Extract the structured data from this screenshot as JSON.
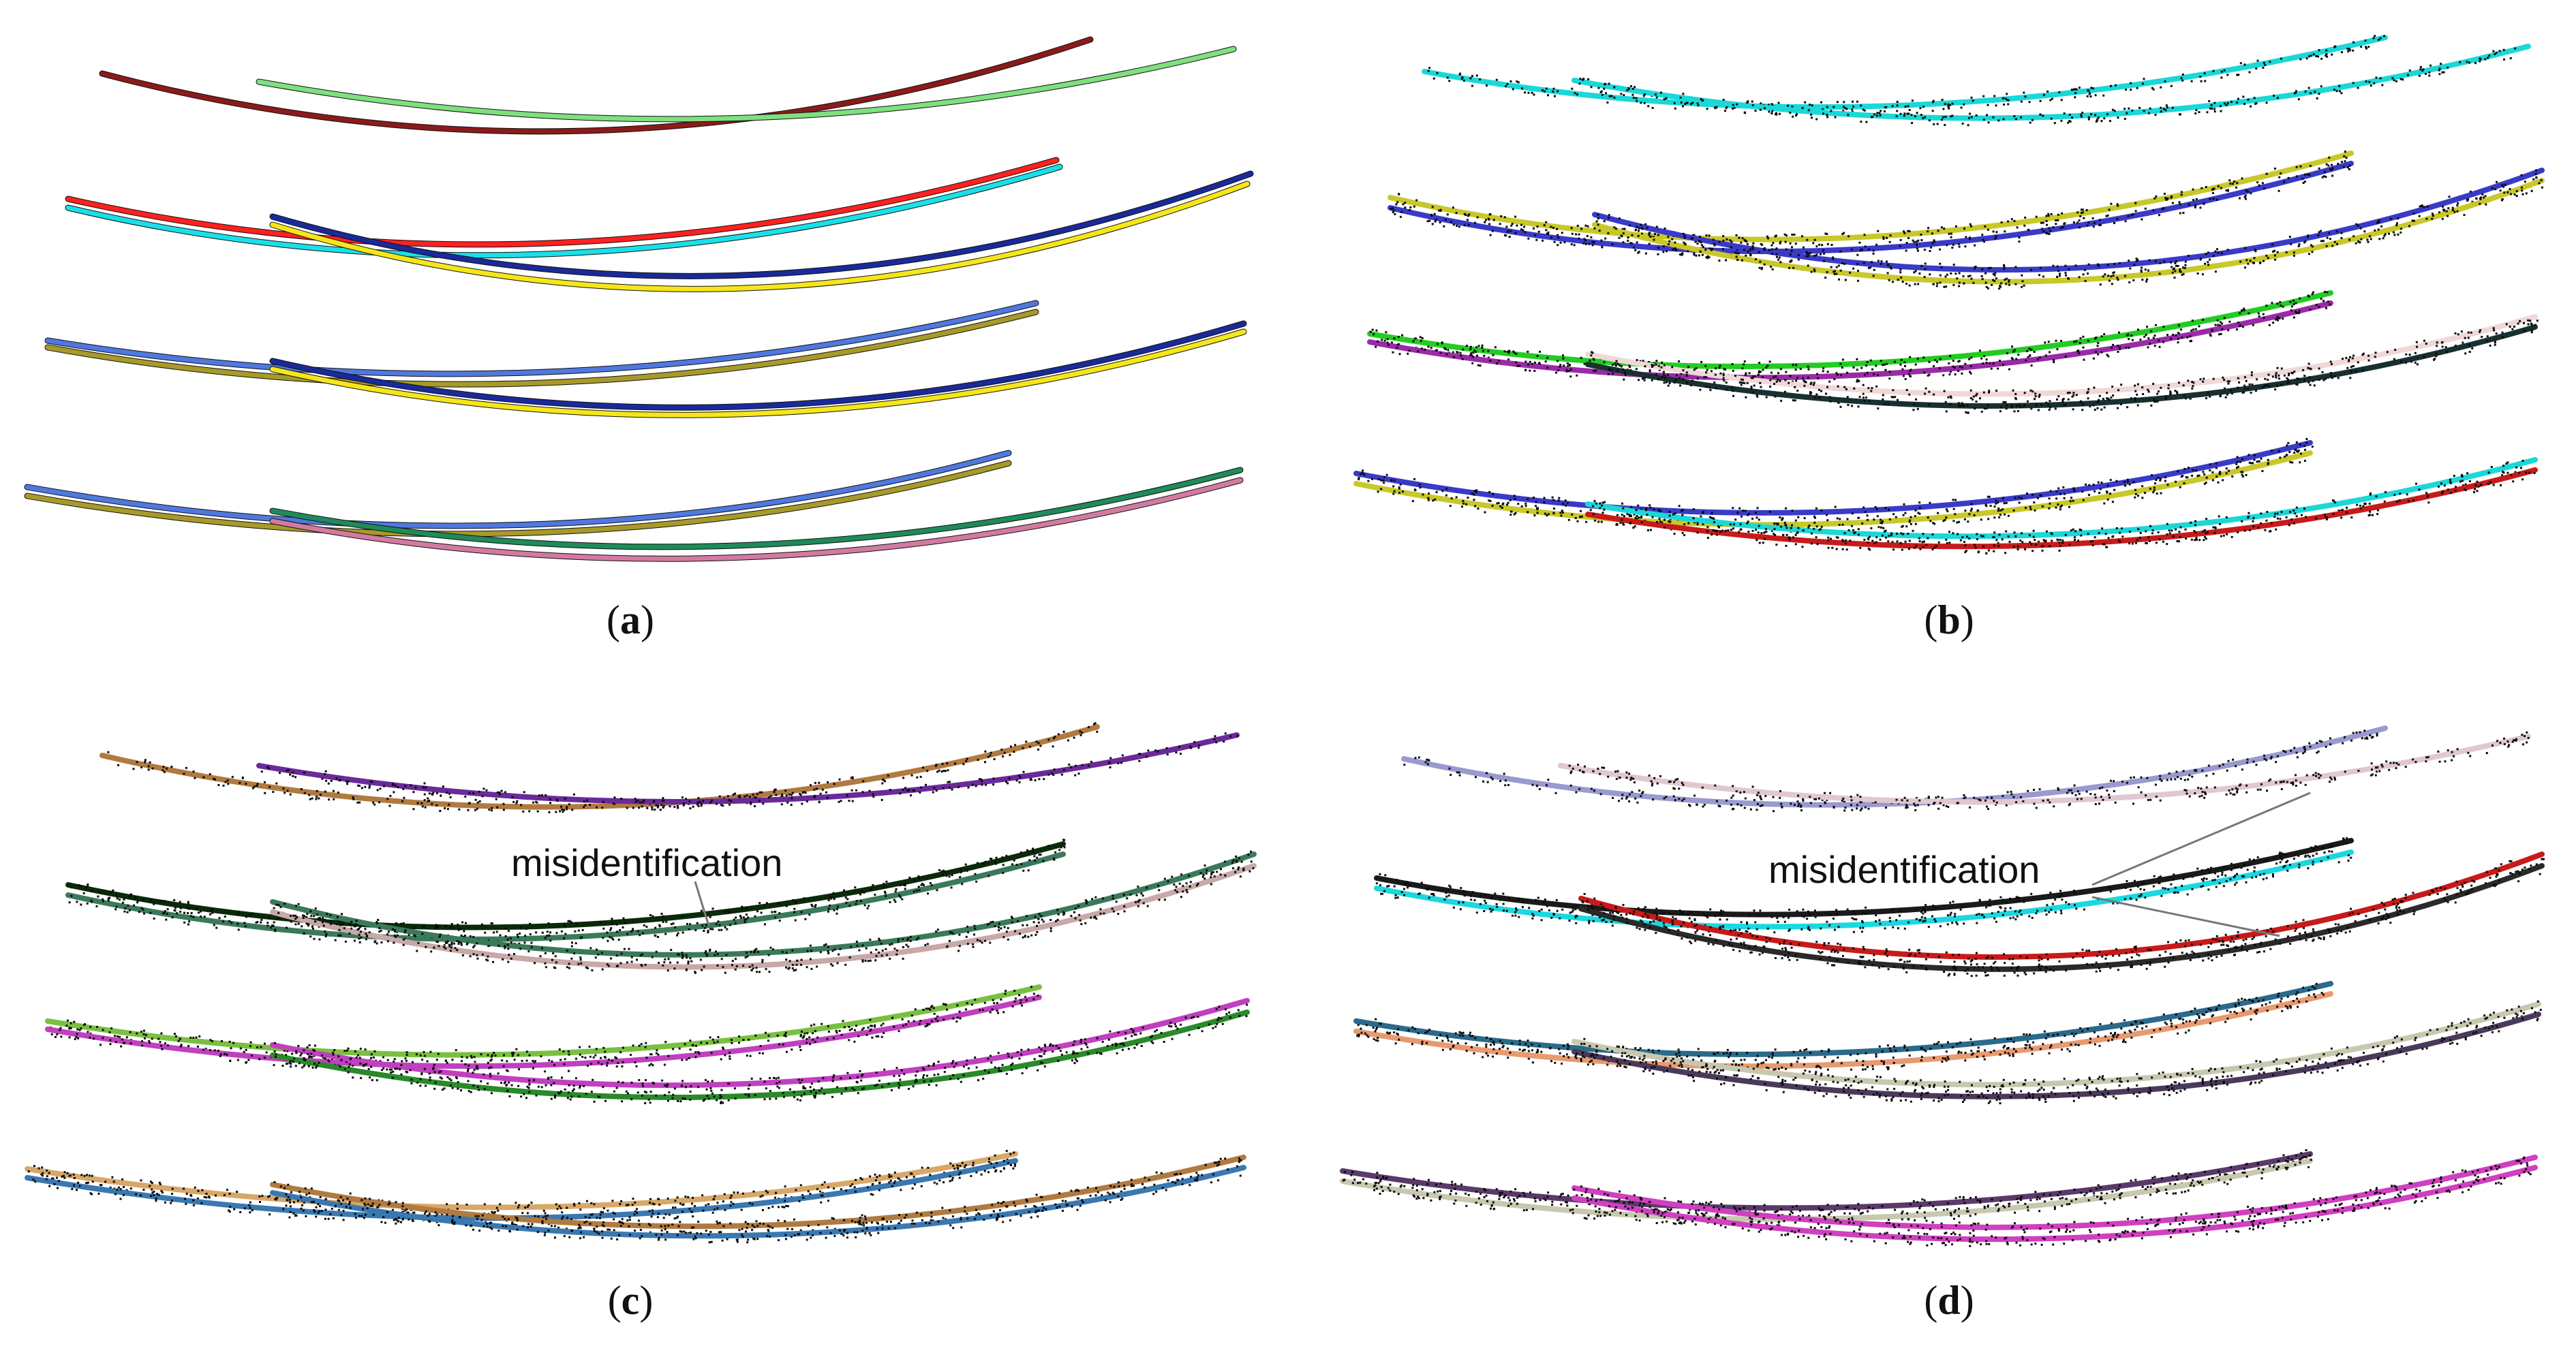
{
  "figure": {
    "panels": [
      {
        "id": "a",
        "label": "a",
        "annotation": "",
        "style": "solid",
        "colors": [
          "#8b1a1a",
          "#7ee07e",
          "#ff2020",
          "#19e0e8",
          "#1a2a9a",
          "#f5e61a",
          "#4f78e0",
          "#a89a2a",
          "#1a2a9a",
          "#f5e61a",
          "#4f78e0",
          "#a89a2a",
          "#1f8a5a",
          "#d37aa0"
        ]
      },
      {
        "id": "b",
        "label": "b",
        "annotation": "",
        "style": "noisy",
        "colors": [
          "#1ad8d8",
          "#1ad8d8",
          "#c8c82a",
          "#3a3ac8",
          "#3a3ac8",
          "#c8c82a",
          "#22cc22",
          "#9a2aa8",
          "#f0d8d8",
          "#1a3030",
          "#3a3ac8",
          "#c8c82a",
          "#1ad8d8",
          "#c81a1a"
        ]
      },
      {
        "id": "c",
        "label": "c",
        "annotation": "misidentification",
        "style": "noisy",
        "colors": [
          "#b07a40",
          "#6a2a9a",
          "#0a2a0a",
          "#3a7a5a",
          "#3a7a5a",
          "#c8a8a8",
          "#7ac040",
          "#c040c0",
          "#c040c0",
          "#2a8a2a",
          "#d8a868",
          "#3a78b0",
          "#b07a40",
          "#3a78b0"
        ]
      },
      {
        "id": "d",
        "label": "d",
        "annotation": "misidentification",
        "style": "noisy",
        "colors": [
          "#9a9ad0",
          "#e0c8d0",
          "#1a1a1a",
          "#19d8e0",
          "#c81a1a",
          "#2a2a2a",
          "#2a6a8a",
          "#e89a70",
          "#c8c8b0",
          "#4a3a5a",
          "#5a3a6a",
          "#c8c8b0",
          "#d040c0",
          "#d040c0"
        ]
      }
    ]
  }
}
